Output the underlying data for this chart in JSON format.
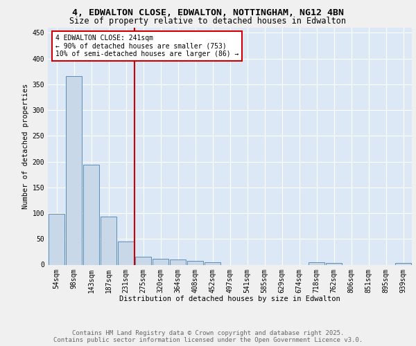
{
  "title_line1": "4, EDWALTON CLOSE, EDWALTON, NOTTINGHAM, NG12 4BN",
  "title_line2": "Size of property relative to detached houses in Edwalton",
  "xlabel": "Distribution of detached houses by size in Edwalton",
  "ylabel": "Number of detached properties",
  "categories": [
    "54sqm",
    "98sqm",
    "143sqm",
    "187sqm",
    "231sqm",
    "275sqm",
    "320sqm",
    "364sqm",
    "408sqm",
    "452sqm",
    "497sqm",
    "541sqm",
    "585sqm",
    "629sqm",
    "674sqm",
    "718sqm",
    "762sqm",
    "806sqm",
    "851sqm",
    "895sqm",
    "939sqm"
  ],
  "values": [
    99,
    366,
    194,
    93,
    45,
    15,
    11,
    10,
    7,
    5,
    0,
    0,
    0,
    0,
    0,
    5,
    4,
    0,
    0,
    0,
    4
  ],
  "bar_color": "#c8d8e8",
  "bar_edge_color": "#5b8db8",
  "vline_x_index": 4,
  "vline_color": "#cc0000",
  "annotation_text": "4 EDWALTON CLOSE: 241sqm\n← 90% of detached houses are smaller (753)\n10% of semi-detached houses are larger (86) →",
  "annotation_box_color": "#ffffff",
  "annotation_box_edge": "#cc0000",
  "ylim": [
    0,
    460
  ],
  "yticks": [
    0,
    50,
    100,
    150,
    200,
    250,
    300,
    350,
    400,
    450
  ],
  "background_color": "#dce8f5",
  "grid_color": "#ffffff",
  "footer_text": "Contains HM Land Registry data © Crown copyright and database right 2025.\nContains public sector information licensed under the Open Government Licence v3.0.",
  "title_fontsize": 9.5,
  "subtitle_fontsize": 8.5,
  "axis_label_fontsize": 7.5,
  "tick_fontsize": 7,
  "annotation_fontsize": 7,
  "footer_fontsize": 6.5
}
